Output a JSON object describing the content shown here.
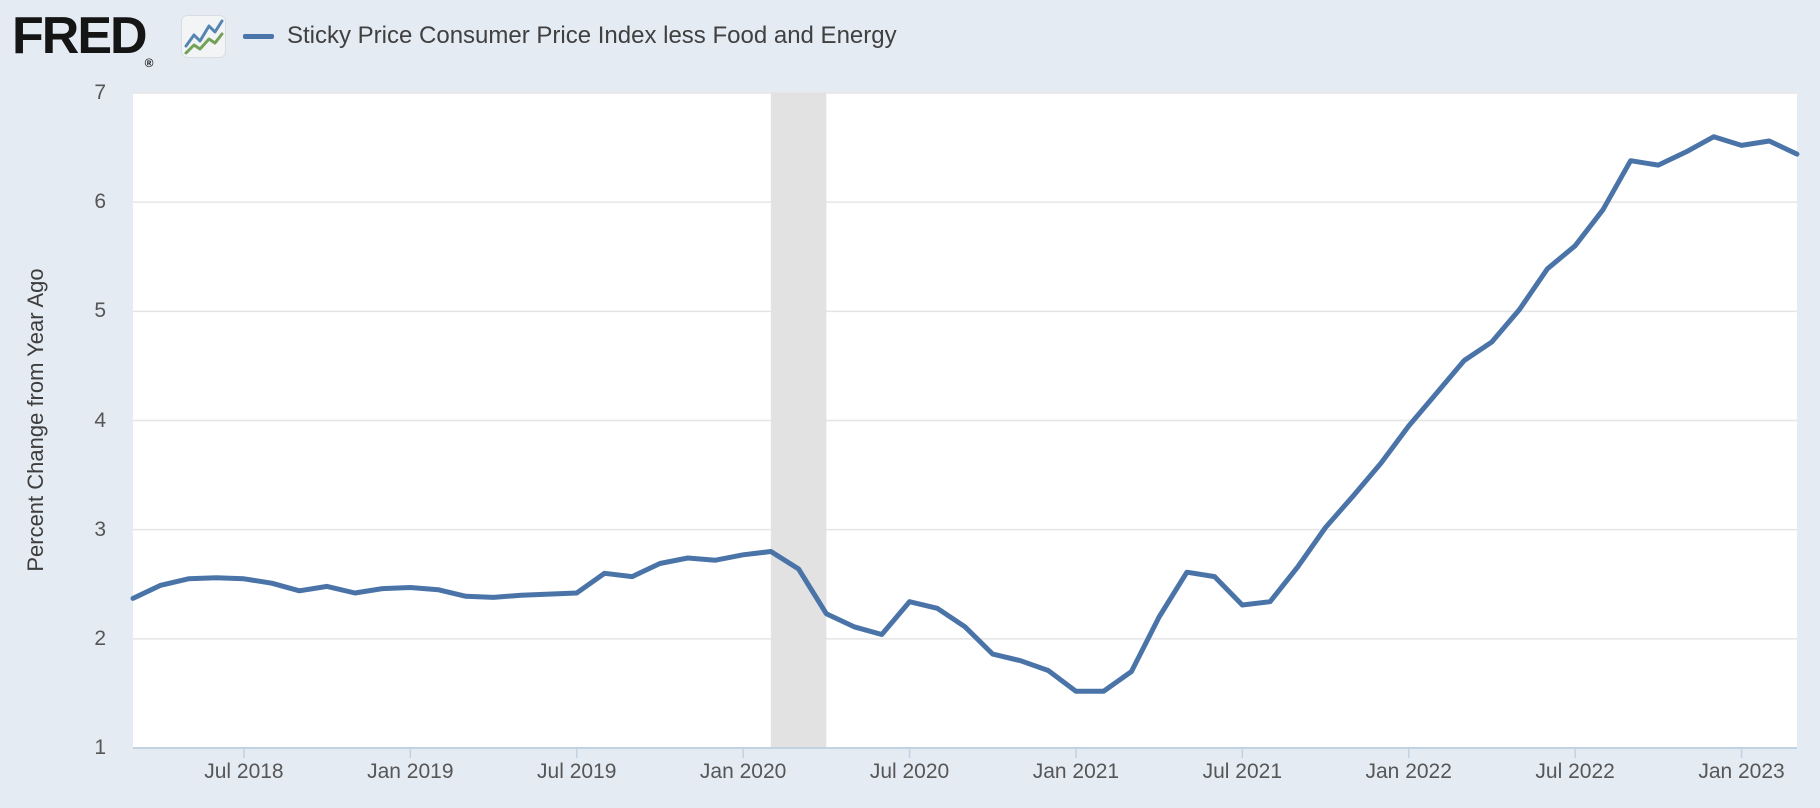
{
  "header": {
    "brand": "FRED",
    "registered_mark": "®",
    "legend": {
      "label": "Sticky Price Consumer Price Index less Food and Energy",
      "swatch_color": "#4975a9"
    }
  },
  "colors": {
    "page_bg": "#e4ebf3",
    "plot_bg": "#ffffff",
    "gridline": "#e5e5e5",
    "axis_line": "#c3d2e3",
    "tick": "#c3d2e3",
    "label_text": "#565656",
    "series_line": "#4a74a8",
    "recession_band": "#e2e2e2",
    "logo_icon_blue": "#5585b2",
    "logo_icon_green": "#73a157"
  },
  "chart_data": {
    "type": "line",
    "title": "Sticky Price Consumer Price Index less Food and Energy",
    "ylabel": "Percent Change from Year Ago",
    "xlabel": "",
    "frequency": "monthly",
    "ylim": [
      1,
      7
    ],
    "y_ticks": [
      1,
      2,
      3,
      4,
      5,
      6,
      7
    ],
    "x_tick_labels": [
      "Jul 2018",
      "Jan 2019",
      "Jul 2019",
      "Jan 2020",
      "Jul 2020",
      "Jan 2021",
      "Jul 2021",
      "Jan 2022",
      "Jul 2022",
      "Jan 2023"
    ],
    "x_tick_indices": [
      4,
      10,
      16,
      22,
      28,
      34,
      40,
      46,
      52,
      58
    ],
    "grid": "horizontal-only",
    "legend_position": "top-left",
    "recession_band": {
      "from": "2020-02",
      "to": "2020-04"
    },
    "x": [
      "2018-03",
      "2018-04",
      "2018-05",
      "2018-06",
      "2018-07",
      "2018-08",
      "2018-09",
      "2018-10",
      "2018-11",
      "2018-12",
      "2019-01",
      "2019-02",
      "2019-03",
      "2019-04",
      "2019-05",
      "2019-06",
      "2019-07",
      "2019-08",
      "2019-09",
      "2019-10",
      "2019-11",
      "2019-12",
      "2020-01",
      "2020-02",
      "2020-03",
      "2020-04",
      "2020-05",
      "2020-06",
      "2020-07",
      "2020-08",
      "2020-09",
      "2020-10",
      "2020-11",
      "2020-12",
      "2021-01",
      "2021-02",
      "2021-03",
      "2021-04",
      "2021-05",
      "2021-06",
      "2021-07",
      "2021-08",
      "2021-09",
      "2021-10",
      "2021-11",
      "2021-12",
      "2022-01",
      "2022-02",
      "2022-03",
      "2022-04",
      "2022-05",
      "2022-06",
      "2022-07",
      "2022-08",
      "2022-09",
      "2022-10",
      "2022-11",
      "2022-12",
      "2023-01",
      "2023-02",
      "2023-03"
    ],
    "values": [
      2.37,
      2.49,
      2.55,
      2.56,
      2.55,
      2.51,
      2.44,
      2.48,
      2.42,
      2.46,
      2.47,
      2.45,
      2.39,
      2.38,
      2.4,
      2.41,
      2.42,
      2.6,
      2.57,
      2.69,
      2.74,
      2.72,
      2.77,
      2.8,
      2.64,
      2.23,
      2.11,
      2.04,
      2.34,
      2.28,
      2.11,
      1.86,
      1.8,
      1.71,
      1.52,
      1.52,
      1.7,
      2.2,
      2.61,
      2.57,
      2.31,
      2.34,
      2.66,
      3.02,
      3.31,
      3.61,
      3.95,
      4.25,
      4.55,
      4.72,
      5.02,
      5.39,
      5.6,
      5.93,
      6.38,
      6.34,
      6.46,
      6.6,
      6.52,
      6.56,
      6.44
    ]
  }
}
